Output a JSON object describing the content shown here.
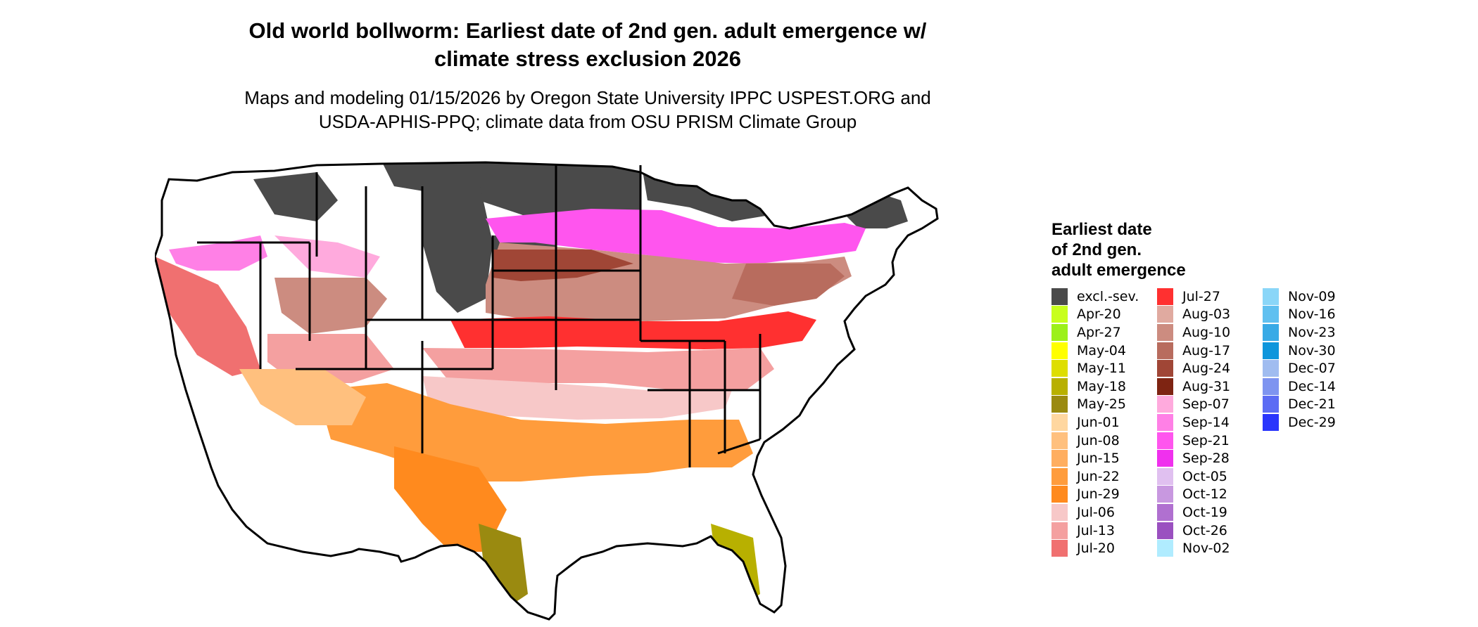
{
  "title": {
    "line1": "Old world bollworm: Earliest date of 2nd gen. adult emergence w/",
    "line2": "climate stress exclusion 2026"
  },
  "subtitle": {
    "line1": "Maps and modeling 01/15/2026 by Oregon State University IPPC USPEST.ORG and",
    "line2": "USDA-APHIS-PPQ; climate data from OSU PRISM Climate Group"
  },
  "legend": {
    "title": [
      "Earliest date",
      "of 2nd gen.",
      "adult emergence"
    ],
    "columns": [
      [
        {
          "label": "excl.-sev.",
          "color": "#4a4a4a"
        },
        {
          "label": "Apr-20",
          "color": "#c8ff1c"
        },
        {
          "label": "Apr-27",
          "color": "#9cf01a"
        },
        {
          "label": "May-04",
          "color": "#ffff00"
        },
        {
          "label": "May-11",
          "color": "#dede00"
        },
        {
          "label": "May-18",
          "color": "#b8b000"
        },
        {
          "label": "May-25",
          "color": "#9a8a10"
        },
        {
          "label": "Jun-01",
          "color": "#ffd7a0"
        },
        {
          "label": "Jun-08",
          "color": "#ffc07e"
        },
        {
          "label": "Jun-15",
          "color": "#ffae60"
        },
        {
          "label": "Jun-22",
          "color": "#ff9c3c"
        },
        {
          "label": "Jun-29",
          "color": "#ff8a1e"
        },
        {
          "label": "Jul-06",
          "color": "#f7c8c8"
        },
        {
          "label": "Jul-13",
          "color": "#f4a0a0"
        },
        {
          "label": "Jul-20",
          "color": "#f07070"
        }
      ],
      [
        {
          "label": "Jul-27",
          "color": "#ff3030"
        },
        {
          "label": "Aug-03",
          "color": "#e0aaa0"
        },
        {
          "label": "Aug-10",
          "color": "#cc8c80"
        },
        {
          "label": "Aug-17",
          "color": "#b86c5e"
        },
        {
          "label": "Aug-24",
          "color": "#a04636"
        },
        {
          "label": "Aug-31",
          "color": "#7e2412"
        },
        {
          "label": "Sep-07",
          "color": "#ffaadd"
        },
        {
          "label": "Sep-14",
          "color": "#ff80e6"
        },
        {
          "label": "Sep-21",
          "color": "#ff55ee"
        },
        {
          "label": "Sep-28",
          "color": "#f030ee"
        },
        {
          "label": "Oct-05",
          "color": "#e0c0f0"
        },
        {
          "label": "Oct-12",
          "color": "#c898e0"
        },
        {
          "label": "Oct-19",
          "color": "#b070d0"
        },
        {
          "label": "Oct-26",
          "color": "#9a50c0"
        },
        {
          "label": "Nov-02",
          "color": "#b0ecff"
        }
      ],
      [
        {
          "label": "Nov-09",
          "color": "#8ad6f8"
        },
        {
          "label": "Nov-16",
          "color": "#60c0f0"
        },
        {
          "label": "Nov-23",
          "color": "#38aae6"
        },
        {
          "label": "Nov-30",
          "color": "#0e96dc"
        },
        {
          "label": "Dec-07",
          "color": "#a0bcf0"
        },
        {
          "label": "Dec-14",
          "color": "#7e94f0"
        },
        {
          "label": "Dec-21",
          "color": "#5c6cf4"
        },
        {
          "label": "Dec-29",
          "color": "#2a36fc"
        }
      ]
    ]
  },
  "map": {
    "palette": {
      "excluded": "#4a4a4a",
      "no_data": "#ffffff",
      "border": "#000000"
    }
  }
}
